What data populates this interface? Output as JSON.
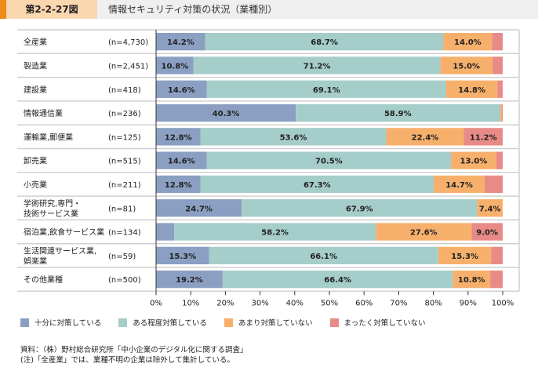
{
  "header": {
    "figure_number": "第2-2-27図",
    "title": "情報セキュリティ対策の状況（業種別）"
  },
  "colors": {
    "full": "#8a9fc2",
    "some": "#a5cdc9",
    "little": "#f7b06c",
    "none": "#e88b88",
    "grid": "#d0d0d0"
  },
  "chart_data": {
    "type": "bar",
    "orientation": "horizontal-stacked-100",
    "title": "情報セキュリティ対策の状況（業種別）",
    "xlabel": "",
    "ylabel": "",
    "xlim": [
      0,
      100
    ],
    "x_ticks": [
      "0%",
      "10%",
      "20%",
      "30%",
      "40%",
      "50%",
      "60%",
      "70%",
      "80%",
      "90%",
      "100%"
    ],
    "legend_position": "bottom",
    "categories": [
      {
        "label": [
          "全産業"
        ],
        "n": "(n=4,730)"
      },
      {
        "label": [
          "製造業"
        ],
        "n": "(n=2,451)"
      },
      {
        "label": [
          "建設業"
        ],
        "n": "(n=418)"
      },
      {
        "label": [
          "情報通信業"
        ],
        "n": "(n=236)"
      },
      {
        "label": [
          "運輸業,郵便業"
        ],
        "n": "(n=125)"
      },
      {
        "label": [
          "卸売業"
        ],
        "n": "(n=515)"
      },
      {
        "label": [
          "小売業"
        ],
        "n": "(n=211)"
      },
      {
        "label": [
          "学術研究,専門・",
          "技術サービス業"
        ],
        "n": "(n=81)"
      },
      {
        "label": [
          "宿泊業,飲食サービス業"
        ],
        "n": "(n=134)"
      },
      {
        "label": [
          "生活関連サービス業,",
          "娯楽業"
        ],
        "n": "(n=59)"
      },
      {
        "label": [
          "その他業種"
        ],
        "n": "(n=500)"
      }
    ],
    "series": [
      {
        "name": "十分に対策している",
        "key": "full",
        "values": [
          14.2,
          10.8,
          14.6,
          40.3,
          12.8,
          14.6,
          12.8,
          24.7,
          5.2,
          15.3,
          19.2
        ],
        "show_label": [
          true,
          true,
          true,
          true,
          true,
          true,
          true,
          true,
          false,
          true,
          true
        ]
      },
      {
        "name": "ある程度対策している",
        "key": "some",
        "values": [
          68.7,
          71.2,
          69.1,
          58.9,
          53.6,
          70.5,
          67.3,
          67.9,
          58.2,
          66.1,
          66.4
        ],
        "show_label": [
          true,
          true,
          true,
          true,
          true,
          true,
          true,
          true,
          true,
          true,
          true
        ]
      },
      {
        "name": "あまり対策していない",
        "key": "little",
        "values": [
          14.0,
          15.0,
          14.8,
          0.5,
          22.4,
          13.0,
          14.7,
          7.4,
          27.6,
          15.3,
          10.8
        ],
        "show_label": [
          true,
          true,
          true,
          false,
          true,
          true,
          true,
          true,
          true,
          true,
          true
        ]
      },
      {
        "name": "まったく対策していない",
        "key": "none",
        "values": [
          3.1,
          3.0,
          1.5,
          0.3,
          11.2,
          1.9,
          5.2,
          0.0,
          9.0,
          3.3,
          3.6
        ],
        "show_label": [
          false,
          false,
          false,
          false,
          true,
          false,
          false,
          false,
          true,
          false,
          false
        ]
      }
    ]
  },
  "notes": {
    "source": "資料：（株）野村総合研究所「中小企業のデジタル化に関する調査」",
    "note": "(注)「全産業」では、業種不明の企業は除外して集計している。"
  }
}
